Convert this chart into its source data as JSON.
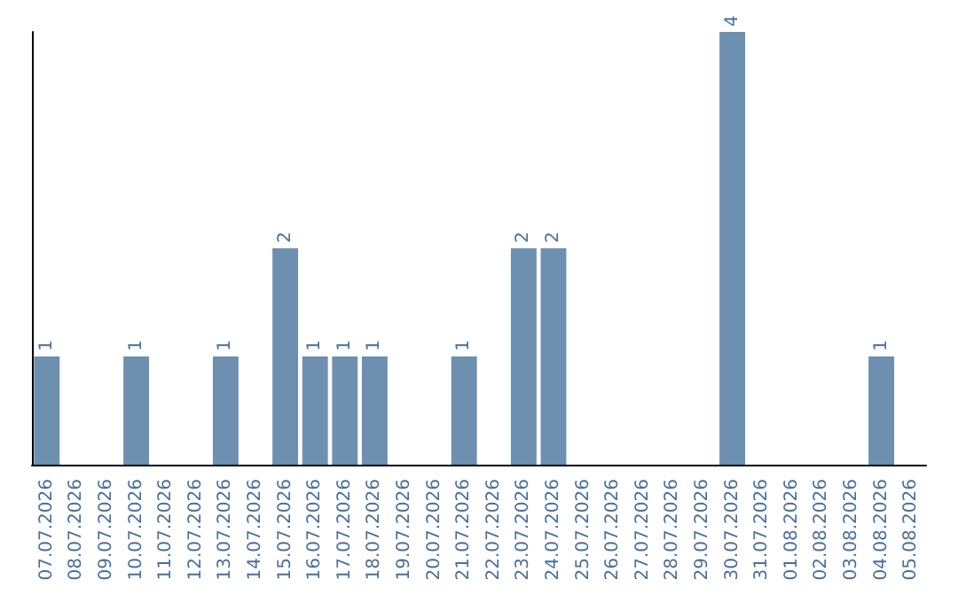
{
  "chart_data": {
    "type": "bar",
    "categories": [
      "07.07.2026",
      "08.07.2026",
      "09.07.2026",
      "10.07.2026",
      "11.07.2026",
      "12.07.2026",
      "13.07.2026",
      "14.07.2026",
      "15.07.2026",
      "16.07.2026",
      "17.07.2026",
      "18.07.2026",
      "19.07.2026",
      "20.07.2026",
      "21.07.2026",
      "22.07.2026",
      "23.07.2026",
      "24.07.2026",
      "25.07.2026",
      "26.07.2026",
      "27.07.2026",
      "28.07.2026",
      "29.07.2026",
      "30.07.2026",
      "31.07.2026",
      "01.08.2026",
      "02.08.2026",
      "03.08.2026",
      "04.08.2026",
      "05.08.2026"
    ],
    "values": [
      1,
      0,
      0,
      1,
      0,
      0,
      1,
      0,
      2,
      1,
      1,
      1,
      0,
      0,
      1,
      0,
      2,
      2,
      0,
      0,
      0,
      0,
      0,
      4,
      0,
      0,
      0,
      0,
      1,
      0
    ],
    "value_labels": [
      "1",
      null,
      null,
      "1",
      null,
      null,
      "1",
      null,
      "2",
      "1",
      "1",
      "1",
      null,
      null,
      "1",
      null,
      "2",
      "2",
      null,
      null,
      null,
      null,
      null,
      "4",
      null,
      null,
      null,
      null,
      "1",
      null
    ],
    "color": "#6d8fb0",
    "ylim": [
      0,
      4
    ],
    "tick_labels": "x",
    "grid": false
  }
}
